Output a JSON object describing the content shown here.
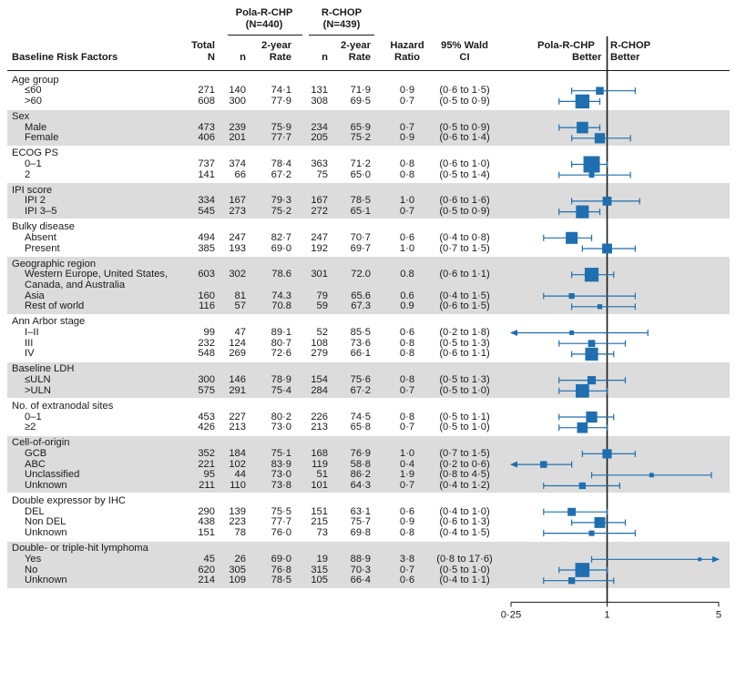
{
  "header": {
    "group_pola": "Pola-R-CHP",
    "group_pola_n": "(N=440)",
    "group_rchop": "R-CHOP",
    "group_rchop_n": "(N=439)",
    "col_factors": "Baseline Risk Factors",
    "col_total_1": "Total",
    "col_total_2": "N",
    "col_n": "n",
    "col_rate_1": "2-year",
    "col_rate_2": "Rate",
    "col_hr_1": "Hazard",
    "col_hr_2": "Ratio",
    "col_ci_1": "95% Wald",
    "col_ci_2": "CI",
    "better_left_1": "Pola-R-CHP",
    "better_left_2": "Better",
    "better_right_1": "R-CHOP",
    "better_right_2": "Better"
  },
  "groups": [
    {
      "title": "Age group",
      "rows": [
        {
          "label": "≤60",
          "total": "271",
          "pn": "140",
          "pr": "74·1",
          "rn": "131",
          "rr": "71·9",
          "hr": "0·9",
          "ci": "(0·6 to 1·5)"
        },
        {
          "label": ">60",
          "total": "608",
          "pn": "300",
          "pr": "77·9",
          "rn": "308",
          "rr": "69·5",
          "hr": "0·7",
          "ci": "(0·5 to 0·9)"
        }
      ]
    },
    {
      "title": "Sex",
      "rows": [
        {
          "label": "Male",
          "total": "473",
          "pn": "239",
          "pr": "75·9",
          "rn": "234",
          "rr": "65·9",
          "hr": "0·7",
          "ci": "(0·5 to 0·9)"
        },
        {
          "label": "Female",
          "total": "406",
          "pn": "201",
          "pr": "77·7",
          "rn": "205",
          "rr": "75·2",
          "hr": "0·9",
          "ci": "(0·6 to 1·4)"
        }
      ]
    },
    {
      "title": "ECOG PS",
      "rows": [
        {
          "label": "0–1",
          "total": "737",
          "pn": "374",
          "pr": "78·4",
          "rn": "363",
          "rr": "71·2",
          "hr": "0·8",
          "ci": "(0·6 to 1·0)"
        },
        {
          "label": "2",
          "total": "141",
          "pn": "66",
          "pr": "67·2",
          "rn": "75",
          "rr": "65·0",
          "hr": "0·8",
          "ci": "(0·5 to 1·4)"
        }
      ]
    },
    {
      "title": "IPI score",
      "rows": [
        {
          "label": "IPI 2",
          "total": "334",
          "pn": "167",
          "pr": "79·3",
          "rn": "167",
          "rr": "78·5",
          "hr": "1·0",
          "ci": "(0·6 to 1·6)"
        },
        {
          "label": "IPI 3–5",
          "total": "545",
          "pn": "273",
          "pr": "75·2",
          "rn": "272",
          "rr": "65·1",
          "hr": "0·7",
          "ci": "(0·5 to 0·9)"
        }
      ]
    },
    {
      "title": "Bulky disease",
      "rows": [
        {
          "label": "Absent",
          "total": "494",
          "pn": "247",
          "pr": "82·7",
          "rn": "247",
          "rr": "70·7",
          "hr": "0·6",
          "ci": "(0·4 to 0·8)"
        },
        {
          "label": "Present",
          "total": "385",
          "pn": "193",
          "pr": "69·0",
          "rn": "192",
          "rr": "69·7",
          "hr": "1·0",
          "ci": "(0·7 to 1·5)"
        }
      ]
    },
    {
      "title": "Geographic region",
      "rows": [
        {
          "label": "Western Europe, United States,",
          "label2": "Canada, and Australia",
          "total": "603",
          "pn": "302",
          "pr": "78.6",
          "rn": "301",
          "rr": "72.0",
          "hr": "0.8",
          "ci": "(0·6 to 1·1)"
        },
        {
          "label": "Asia",
          "total": "160",
          "pn": "81",
          "pr": "74.3",
          "rn": "79",
          "rr": "65.6",
          "hr": "0.6",
          "ci": "(0·4 to 1·5)"
        },
        {
          "label": "Rest of world",
          "total": "116",
          "pn": "57",
          "pr": "70.8",
          "rn": "59",
          "rr": "67.3",
          "hr": "0.9",
          "ci": "(0·6 to 1·5)"
        }
      ]
    },
    {
      "title": "Ann Arbor stage",
      "rows": [
        {
          "label": "I–II",
          "total": "99",
          "pn": "47",
          "pr": "89·1",
          "rn": "52",
          "rr": "85·5",
          "hr": "0·6",
          "ci": "(0·2 to 1·8)"
        },
        {
          "label": "III",
          "total": "232",
          "pn": "124",
          "pr": "80·7",
          "rn": "108",
          "rr": "73·6",
          "hr": "0·8",
          "ci": "(0·5 to 1·3)"
        },
        {
          "label": "IV",
          "total": "548",
          "pn": "269",
          "pr": "72·6",
          "rn": "279",
          "rr": "66·1",
          "hr": "0·8",
          "ci": "(0·6 to 1·1)"
        }
      ]
    },
    {
      "title": "Baseline LDH",
      "rows": [
        {
          "label": "≤ULN",
          "total": "300",
          "pn": "146",
          "pr": "78·9",
          "rn": "154",
          "rr": "75·6",
          "hr": "0·8",
          "ci": "(0·5 to 1·3)"
        },
        {
          "label": ">ULN",
          "total": "575",
          "pn": "291",
          "pr": "75·4",
          "rn": "284",
          "rr": "67·2",
          "hr": "0·7",
          "ci": "(0·5 to 1·0)"
        }
      ]
    },
    {
      "title": "No. of extranodal sites",
      "rows": [
        {
          "label": "0–1",
          "total": "453",
          "pn": "227",
          "pr": "80·2",
          "rn": "226",
          "rr": "74·5",
          "hr": "0·8",
          "ci": "(0·5 to 1·1)"
        },
        {
          "label": "≥2",
          "total": "426",
          "pn": "213",
          "pr": "73·0",
          "rn": "213",
          "rr": "65·8",
          "hr": "0·7",
          "ci": "(0·5 to 1·0)"
        }
      ]
    },
    {
      "title": "Cell-of-origin",
      "rows": [
        {
          "label": "GCB",
          "total": "352",
          "pn": "184",
          "pr": "75·1",
          "rn": "168",
          "rr": "76·9",
          "hr": "1·0",
          "ci": "(0·7 to 1·5)"
        },
        {
          "label": "ABC",
          "total": "221",
          "pn": "102",
          "pr": "83·9",
          "rn": "119",
          "rr": "58·8",
          "hr": "0·4",
          "ci": "(0·2 to 0·6)"
        },
        {
          "label": "Unclassified",
          "total": "95",
          "pn": "44",
          "pr": "73·0",
          "rn": "51",
          "rr": "86·2",
          "hr": "1·9",
          "ci": "(0·8 to 4·5)"
        },
        {
          "label": "Unknown",
          "total": "211",
          "pn": "110",
          "pr": "73·8",
          "rn": "101",
          "rr": "64·3",
          "hr": "0·7",
          "ci": "(0·4 to 1·2)"
        }
      ]
    },
    {
      "title": "Double expressor by IHC",
      "rows": [
        {
          "label": "DEL",
          "total": "290",
          "pn": "139",
          "pr": "75·5",
          "rn": "151",
          "rr": "63·1",
          "hr": "0·6",
          "ci": "(0·4 to 1·0)"
        },
        {
          "label": "Non DEL",
          "total": "438",
          "pn": "223",
          "pr": "77·7",
          "rn": "215",
          "rr": "75·7",
          "hr": "0·9",
          "ci": "(0·6 to 1·3)"
        },
        {
          "label": "Unknown",
          "total": "151",
          "pn": "78",
          "pr": "76·0",
          "rn": "73",
          "rr": "69·8",
          "hr": "0·8",
          "ci": "(0·4 to 1·5)"
        }
      ]
    },
    {
      "title": "Double- or triple-hit lymphoma",
      "rows": [
        {
          "label": "Yes",
          "total": "45",
          "pn": "26",
          "pr": "69·0",
          "rn": "19",
          "rr": "88·9",
          "hr": "3·8",
          "ci": "(0·8 to 17·6)"
        },
        {
          "label": "No",
          "total": "620",
          "pn": "305",
          "pr": "76·8",
          "rn": "315",
          "rr": "70·3",
          "hr": "0·7",
          "ci": "(0·5 to 1·0)"
        },
        {
          "label": "Unknown",
          "total": "214",
          "pn": "109",
          "pr": "78·5",
          "rn": "105",
          "rr": "66·4",
          "hr": "0·6",
          "ci": "(0·4 to 1·1)"
        }
      ]
    }
  ],
  "chart_data": {
    "type": "forest",
    "title": "",
    "xlabel": "",
    "x_scale": "log",
    "xlim": [
      0.25,
      5
    ],
    "ticks": [
      "0·25",
      "1",
      "5"
    ],
    "reference_line": 1,
    "marker_color": "#1f6fb0",
    "legend_left": "Pola-R-CHP Better",
    "legend_right": "R-CHOP Better",
    "points": [
      {
        "group": "Age group",
        "label": "≤60",
        "hr": 0.9,
        "lo": 0.6,
        "hi": 1.5,
        "n": 271
      },
      {
        "group": "Age group",
        "label": ">60",
        "hr": 0.7,
        "lo": 0.5,
        "hi": 0.9,
        "n": 608
      },
      {
        "group": "Sex",
        "label": "Male",
        "hr": 0.7,
        "lo": 0.5,
        "hi": 0.9,
        "n": 473
      },
      {
        "group": "Sex",
        "label": "Female",
        "hr": 0.9,
        "lo": 0.6,
        "hi": 1.4,
        "n": 406
      },
      {
        "group": "ECOG PS",
        "label": "0–1",
        "hr": 0.8,
        "lo": 0.6,
        "hi": 1.0,
        "n": 737
      },
      {
        "group": "ECOG PS",
        "label": "2",
        "hr": 0.8,
        "lo": 0.5,
        "hi": 1.4,
        "n": 141
      },
      {
        "group": "IPI score",
        "label": "IPI 2",
        "hr": 1.0,
        "lo": 0.6,
        "hi": 1.6,
        "n": 334
      },
      {
        "group": "IPI score",
        "label": "IPI 3–5",
        "hr": 0.7,
        "lo": 0.5,
        "hi": 0.9,
        "n": 545
      },
      {
        "group": "Bulky disease",
        "label": "Absent",
        "hr": 0.6,
        "lo": 0.4,
        "hi": 0.8,
        "n": 494
      },
      {
        "group": "Bulky disease",
        "label": "Present",
        "hr": 1.0,
        "lo": 0.7,
        "hi": 1.5,
        "n": 385
      },
      {
        "group": "Geographic region",
        "label": "Western Europe, United States, Canada, and Australia",
        "hr": 0.8,
        "lo": 0.6,
        "hi": 1.1,
        "n": 603
      },
      {
        "group": "Geographic region",
        "label": "Asia",
        "hr": 0.6,
        "lo": 0.4,
        "hi": 1.5,
        "n": 160
      },
      {
        "group": "Geographic region",
        "label": "Rest of world",
        "hr": 0.9,
        "lo": 0.6,
        "hi": 1.5,
        "n": 116
      },
      {
        "group": "Ann Arbor stage",
        "label": "I–II",
        "hr": 0.6,
        "lo": 0.2,
        "hi": 1.8,
        "n": 99
      },
      {
        "group": "Ann Arbor stage",
        "label": "III",
        "hr": 0.8,
        "lo": 0.5,
        "hi": 1.3,
        "n": 232
      },
      {
        "group": "Ann Arbor stage",
        "label": "IV",
        "hr": 0.8,
        "lo": 0.6,
        "hi": 1.1,
        "n": 548
      },
      {
        "group": "Baseline LDH",
        "label": "≤ULN",
        "hr": 0.8,
        "lo": 0.5,
        "hi": 1.3,
        "n": 300
      },
      {
        "group": "Baseline LDH",
        "label": ">ULN",
        "hr": 0.7,
        "lo": 0.5,
        "hi": 1.0,
        "n": 575
      },
      {
        "group": "No. of extranodal sites",
        "label": "0–1",
        "hr": 0.8,
        "lo": 0.5,
        "hi": 1.1,
        "n": 453
      },
      {
        "group": "No. of extranodal sites",
        "label": "≥2",
        "hr": 0.7,
        "lo": 0.5,
        "hi": 1.0,
        "n": 426
      },
      {
        "group": "Cell-of-origin",
        "label": "GCB",
        "hr": 1.0,
        "lo": 0.7,
        "hi": 1.5,
        "n": 352
      },
      {
        "group": "Cell-of-origin",
        "label": "ABC",
        "hr": 0.4,
        "lo": 0.2,
        "hi": 0.6,
        "n": 221
      },
      {
        "group": "Cell-of-origin",
        "label": "Unclassified",
        "hr": 1.9,
        "lo": 0.8,
        "hi": 4.5,
        "n": 95
      },
      {
        "group": "Cell-of-origin",
        "label": "Unknown",
        "hr": 0.7,
        "lo": 0.4,
        "hi": 1.2,
        "n": 211
      },
      {
        "group": "Double expressor by IHC",
        "label": "DEL",
        "hr": 0.6,
        "lo": 0.4,
        "hi": 1.0,
        "n": 290
      },
      {
        "group": "Double expressor by IHC",
        "label": "Non DEL",
        "hr": 0.9,
        "lo": 0.6,
        "hi": 1.3,
        "n": 438
      },
      {
        "group": "Double expressor by IHC",
        "label": "Unknown",
        "hr": 0.8,
        "lo": 0.4,
        "hi": 1.5,
        "n": 151
      },
      {
        "group": "Double- or triple-hit lymphoma",
        "label": "Yes",
        "hr": 3.8,
        "lo": 0.8,
        "hi": 17.6,
        "n": 45
      },
      {
        "group": "Double- or triple-hit lymphoma",
        "label": "No",
        "hr": 0.7,
        "lo": 0.5,
        "hi": 1.0,
        "n": 620
      },
      {
        "group": "Double- or triple-hit lymphoma",
        "label": "Unknown",
        "hr": 0.6,
        "lo": 0.4,
        "hi": 1.1,
        "n": 214
      }
    ]
  }
}
